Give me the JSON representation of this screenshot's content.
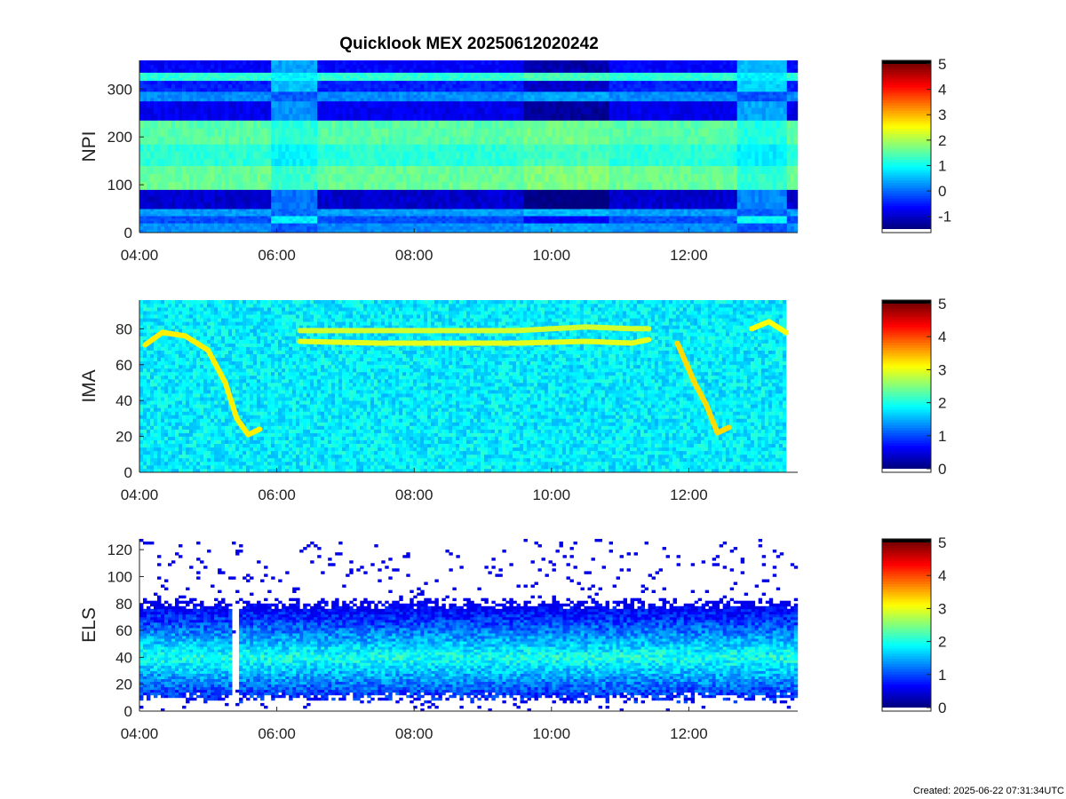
{
  "title": "Quicklook MEX 20250612020242",
  "footer": "Created: 2025-06-22 07:31:34UTC",
  "chart_data": [
    {
      "type": "heatmap",
      "ylabel": "NPI",
      "x_ticks": [
        "04:00",
        "06:00",
        "08:00",
        "10:00",
        "12:00"
      ],
      "x_range": [
        "04:00",
        "13:35"
      ],
      "y_ticks": [
        "0",
        "100",
        "200",
        "300"
      ],
      "ylim": [
        0,
        360
      ],
      "colorbar": {
        "ticks": [
          "-1",
          "0",
          "1",
          "2",
          "3",
          "4",
          "5"
        ],
        "range": [
          -1.5,
          5
        ]
      },
      "colormap": "jet",
      "bands": [
        {
          "y": [
            0,
            20
          ],
          "level": 0.2
        },
        {
          "y": [
            20,
            35
          ],
          "level": -0.2
        },
        {
          "y": [
            35,
            50
          ],
          "level": 0.3
        },
        {
          "y": [
            50,
            90
          ],
          "level": -1.0
        },
        {
          "y": [
            90,
            140
          ],
          "level": 1.6
        },
        {
          "y": [
            140,
            185
          ],
          "level": 1.2
        },
        {
          "y": [
            185,
            235
          ],
          "level": 1.5
        },
        {
          "y": [
            235,
            275
          ],
          "level": -0.8
        },
        {
          "y": [
            275,
            295
          ],
          "level": 0.2
        },
        {
          "y": [
            295,
            318
          ],
          "level": -0.5
        },
        {
          "y": [
            318,
            335
          ],
          "level": 1.2
        },
        {
          "y": [
            335,
            360
          ],
          "level": -0.7
        }
      ],
      "intervals": [
        {
          "t": [
            "05:55",
            "06:35"
          ],
          "shift": 0.8
        },
        {
          "t": [
            "09:35",
            "10:50"
          ],
          "shift": -0.4
        },
        {
          "t": [
            "12:40",
            "13:25"
          ],
          "shift": 0.9
        }
      ],
      "grid": false
    },
    {
      "type": "heatmap",
      "ylabel": "IMA",
      "x_ticks": [
        "04:00",
        "06:00",
        "08:00",
        "10:00",
        "12:00"
      ],
      "x_range": [
        "04:00",
        "13:25"
      ],
      "y_ticks": [
        "0",
        "20",
        "40",
        "60",
        "80"
      ],
      "ylim": [
        0,
        96
      ],
      "colorbar": {
        "ticks": [
          "0",
          "1",
          "2",
          "3",
          "4",
          "5"
        ],
        "range": [
          0,
          5
        ]
      },
      "colormap": "jet",
      "background_level": 1.8,
      "traces": [
        {
          "t": [
            "04:05",
            "04:20",
            "04:40",
            "05:00",
            "05:15",
            "05:25",
            "05:35",
            "05:45"
          ],
          "y": [
            71,
            78,
            76,
            68,
            50,
            30,
            21,
            24
          ],
          "level": 3.2
        },
        {
          "t": [
            "06:20",
            "07:30",
            "08:30",
            "09:30",
            "10:30",
            "11:10",
            "11:25"
          ],
          "y": [
            73,
            72,
            72,
            72,
            73,
            72,
            74
          ],
          "level": 3.0
        },
        {
          "t": [
            "06:20",
            "07:30",
            "08:30",
            "09:30",
            "10:30",
            "11:10",
            "11:25"
          ],
          "y": [
            79,
            79,
            79,
            79,
            81,
            80,
            80
          ],
          "level": 2.9
        },
        {
          "t": [
            "11:50",
            "12:05",
            "12:15",
            "12:25",
            "12:35"
          ],
          "y": [
            72,
            50,
            38,
            22,
            25
          ],
          "level": 3.3
        },
        {
          "t": [
            "12:55",
            "13:10",
            "13:25"
          ],
          "y": [
            80,
            84,
            78
          ],
          "level": 3.1
        }
      ],
      "grid": false
    },
    {
      "type": "heatmap",
      "ylabel": "ELS",
      "x_ticks": [
        "04:00",
        "06:00",
        "08:00",
        "10:00",
        "12:00"
      ],
      "x_range": [
        "04:00",
        "13:35"
      ],
      "y_ticks": [
        "0",
        "20",
        "40",
        "60",
        "80",
        "100",
        "120"
      ],
      "ylim": [
        0,
        128
      ],
      "colorbar": {
        "ticks": [
          "0",
          "1",
          "2",
          "3",
          "4",
          "5"
        ],
        "range": [
          0,
          5
        ]
      },
      "colormap": "jet",
      "core_center": 40,
      "core_level": 2.0,
      "edge_top": 80,
      "gaps": [
        {
          "t": [
            "05:20",
            "05:25"
          ]
        }
      ],
      "grid": false
    }
  ]
}
